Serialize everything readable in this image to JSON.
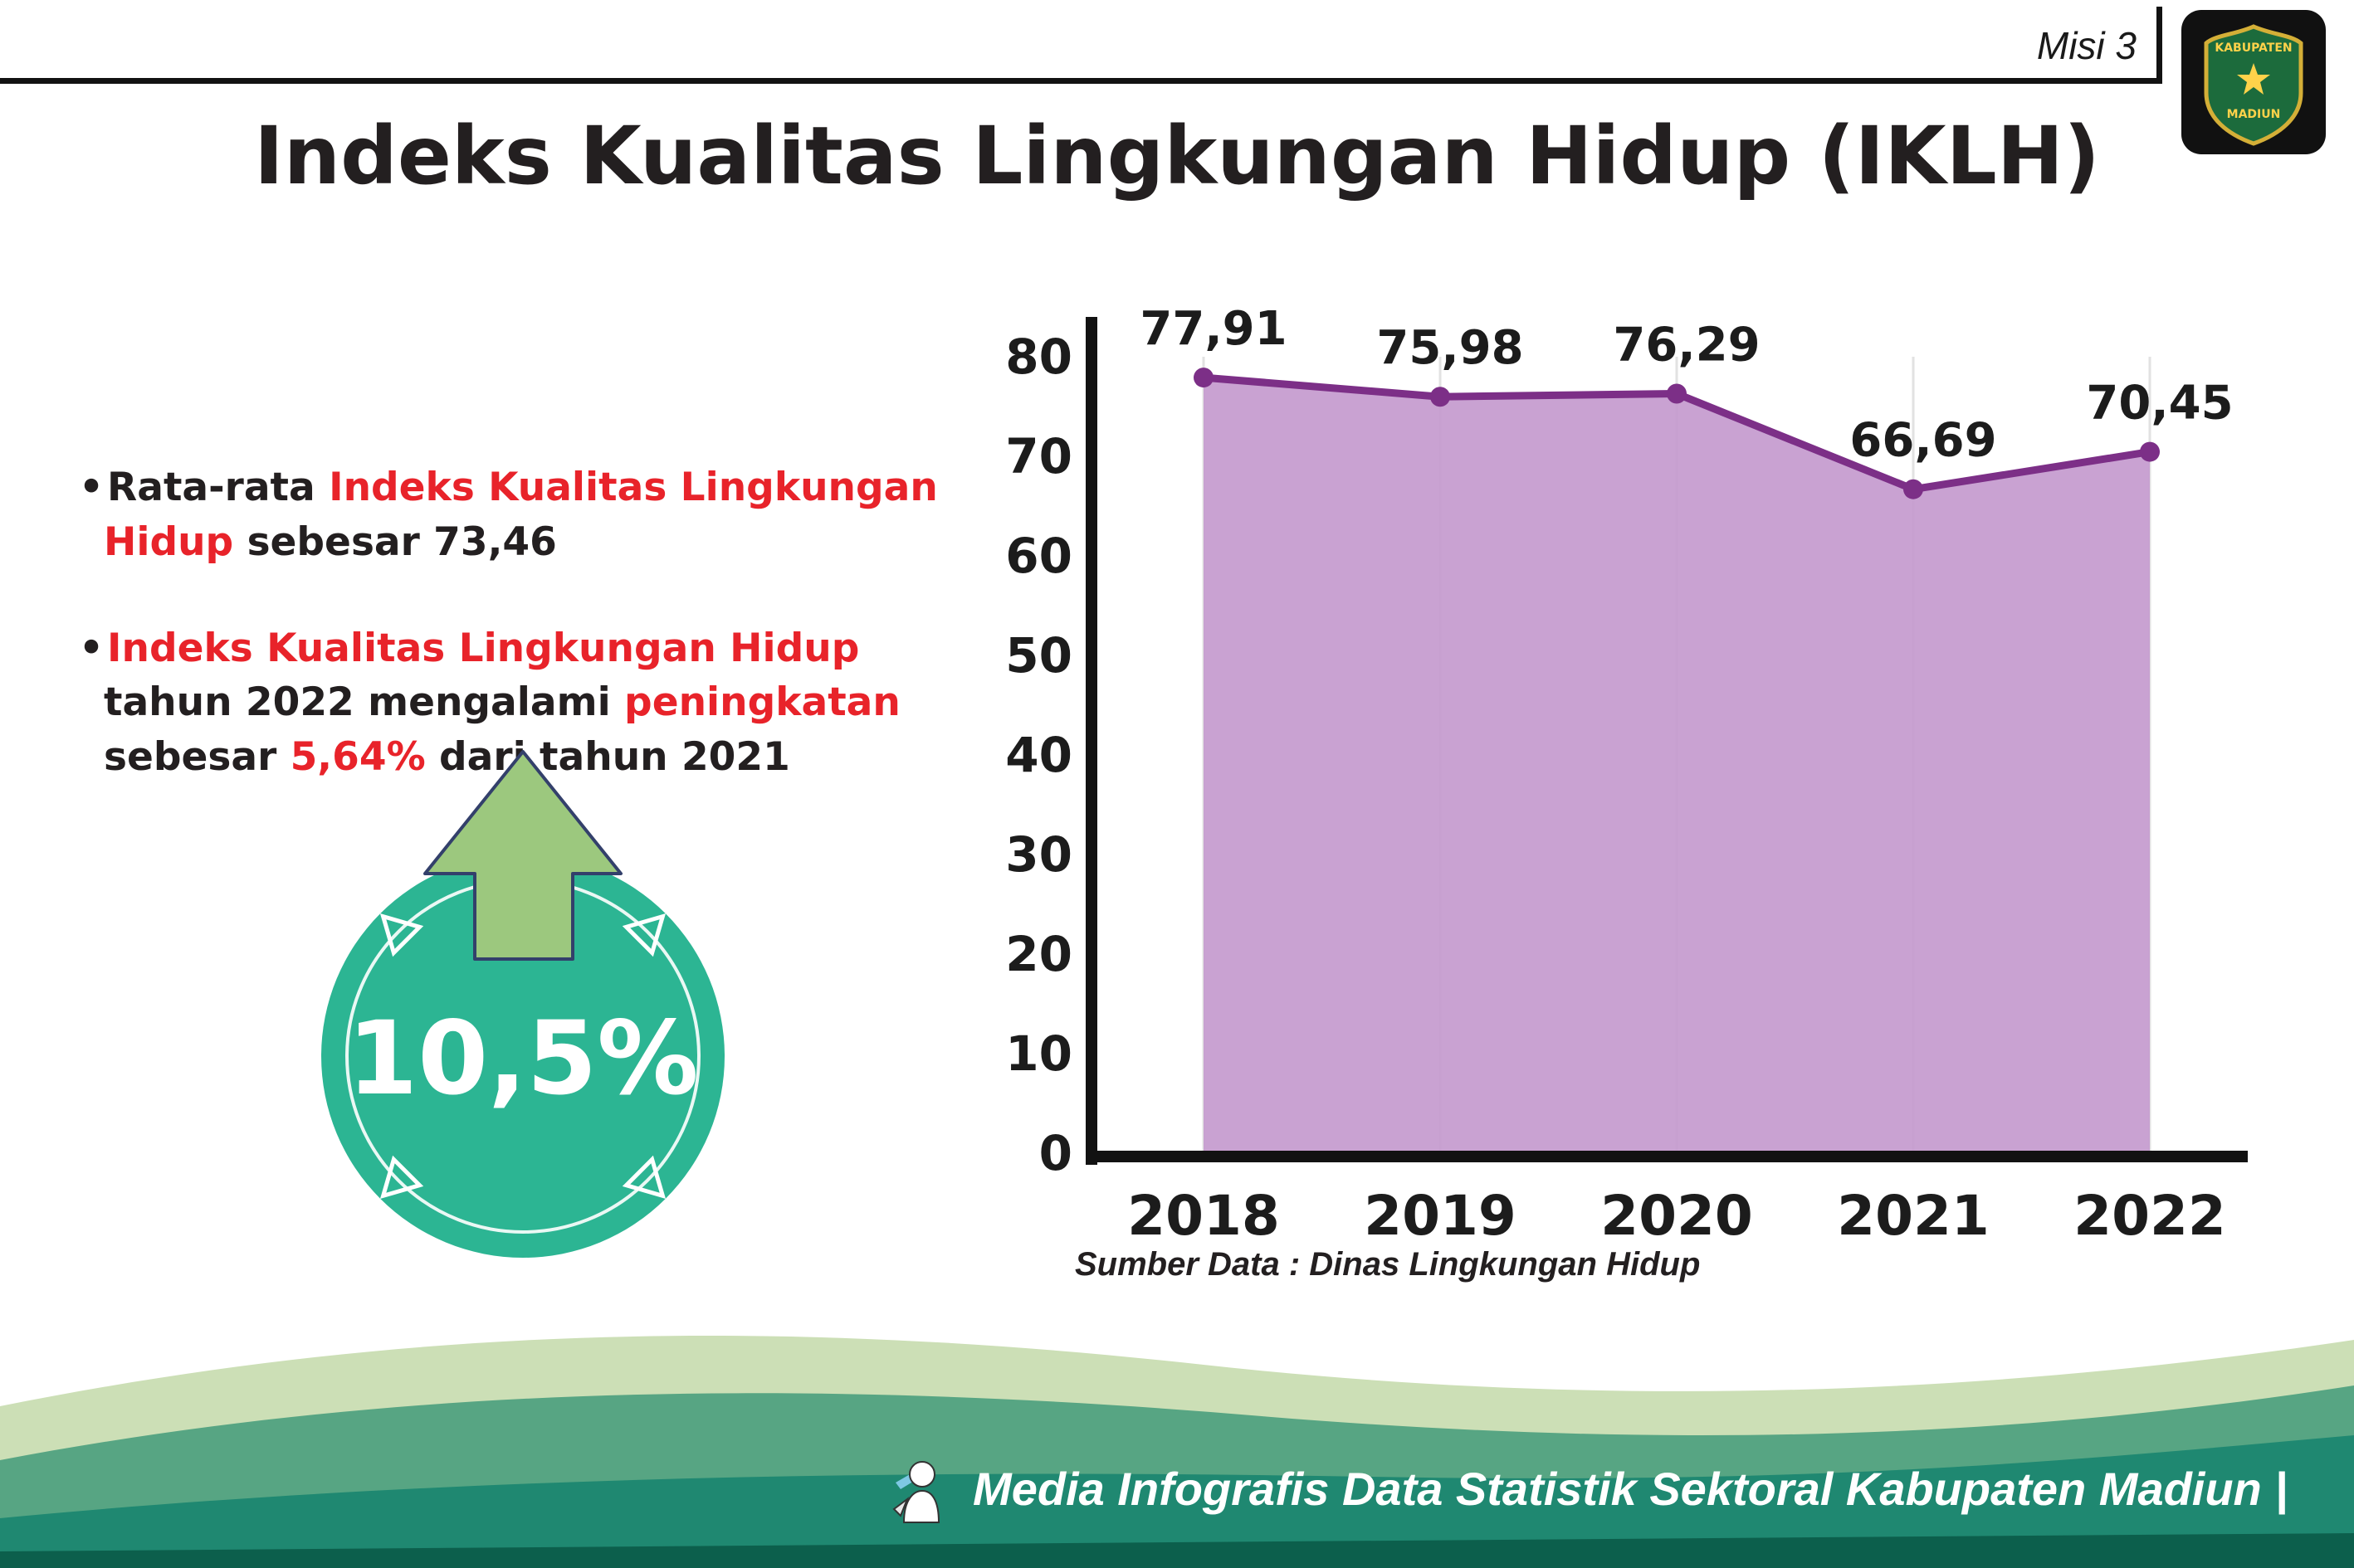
{
  "header": {
    "misi": "Misi 3",
    "logo_line1": "KABUPATEN",
    "logo_line2": "MADIUN"
  },
  "title": "Indeks Kualitas Lingkungan Hidup (IKLH)",
  "bullets": [
    {
      "segments": [
        {
          "text": "Rata-rata ",
          "color": "black"
        },
        {
          "text": "Indeks Kualitas Lingkungan Hidup",
          "color": "red"
        },
        {
          "text": " sebesar 73,46",
          "color": "black"
        }
      ]
    },
    {
      "segments": [
        {
          "text": "Indeks Kualitas Lingkungan Hidup",
          "color": "red"
        },
        {
          "text": " tahun 2022 mengalami ",
          "color": "black"
        },
        {
          "text": "peningkatan",
          "color": "red"
        },
        {
          "text": " sebesar ",
          "color": "black"
        },
        {
          "text": "5,64%",
          "color": "red"
        },
        {
          "text": " dari tahun 2021",
          "color": "black"
        }
      ]
    }
  ],
  "badge": {
    "value": "10,5%"
  },
  "chart_data": {
    "type": "area",
    "categories": [
      "2018",
      "2019",
      "2020",
      "2021",
      "2022"
    ],
    "values": [
      77.91,
      75.98,
      76.29,
      66.69,
      70.45
    ],
    "labels": [
      "77,91",
      "75,98",
      "76,29",
      "66,69",
      "70,45"
    ],
    "title": "",
    "xlabel": "",
    "ylabel": "",
    "ylim": [
      0,
      80
    ],
    "yticks": [
      0,
      10,
      20,
      30,
      40,
      50,
      60,
      70,
      80
    ],
    "grid": "faint-vertical",
    "legend": "none",
    "line_color": "#7c2f87",
    "fill_color": "#c49ace",
    "source": "Sumber Data : Dinas Lingkungan Hidup"
  },
  "footer": {
    "text": "Media Infografis Data Statistik Sektoral Kabupaten Madiun |"
  },
  "colors": {
    "black": "#231f20",
    "red": "#e8232a",
    "teal": "#2cb593",
    "arrow_green": "#9cc87e",
    "arrow_outline": "#33406b",
    "axis": "#121212",
    "footer_pale": "#ccdfb6",
    "footer_mid": "#57a583",
    "footer_teal": "#1f English8871",
    "footer_dark": "#0c5f4c"
  }
}
